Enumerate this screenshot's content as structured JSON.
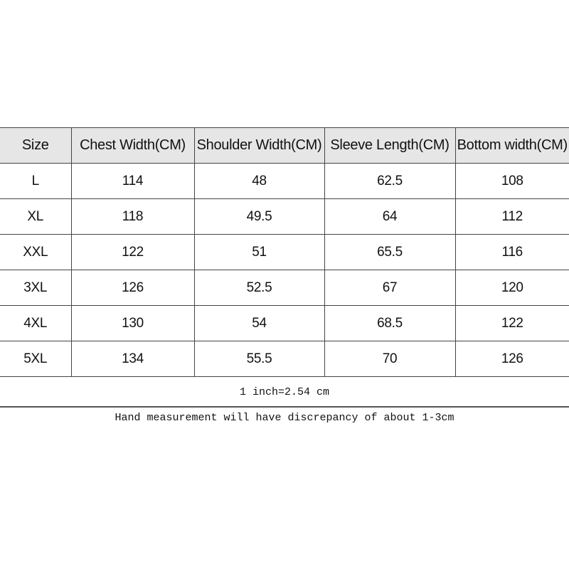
{
  "table": {
    "headers": [
      "Size",
      "Chest Width(CM)",
      "Shoulder Width(CM)",
      "Sleeve Length(CM)",
      "Bottom width(CM)"
    ],
    "rows": [
      [
        "L",
        "114",
        "48",
        "62.5",
        "108"
      ],
      [
        "XL",
        "118",
        "49.5",
        "64",
        "112"
      ],
      [
        "XXL",
        "122",
        "51",
        "65.5",
        "116"
      ],
      [
        "3XL",
        "126",
        "52.5",
        "67",
        "120"
      ],
      [
        "4XL",
        "130",
        "54",
        "68.5",
        "122"
      ],
      [
        "5XL",
        "134",
        "55.5",
        "70",
        "126"
      ]
    ]
  },
  "notes": {
    "conversion": "1 inch=2.54 cm",
    "disclaimer": "Hand measurement will have discrepancy of about 1-3cm"
  }
}
